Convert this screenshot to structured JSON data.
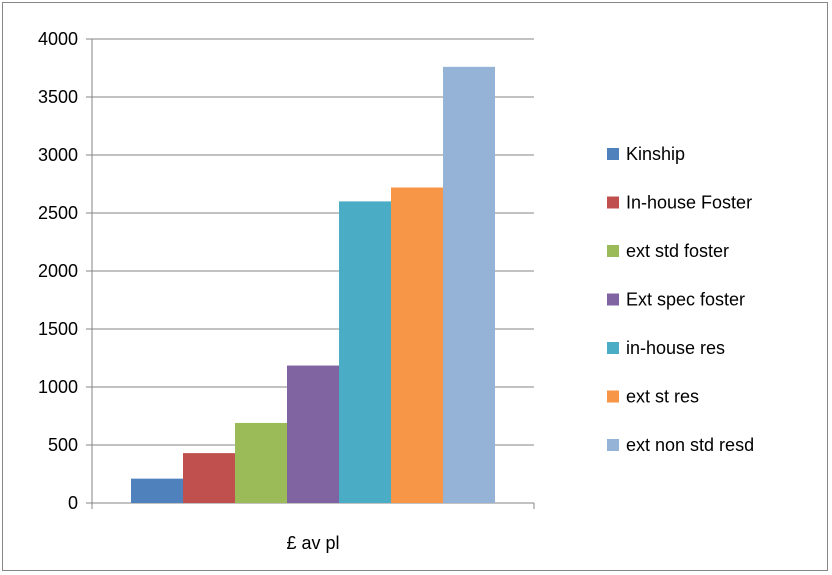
{
  "chart_data": {
    "type": "bar",
    "categories": [
      "£ av pl"
    ],
    "series": [
      {
        "name": "Kinship",
        "color": "#4F81BD",
        "values": [
          210
        ]
      },
      {
        "name": "In-house Foster",
        "color": "#C0504D",
        "values": [
          430
        ]
      },
      {
        "name": "ext std foster",
        "color": "#9BBB59",
        "values": [
          690
        ]
      },
      {
        "name": "Ext spec foster",
        "color": "#8064A2",
        "values": [
          1185
        ]
      },
      {
        "name": "in-house res",
        "color": "#4BACC6",
        "values": [
          2600
        ]
      },
      {
        "name": "ext st res",
        "color": "#F79646",
        "values": [
          2720
        ]
      },
      {
        "name": "ext non std resd",
        "color": "#95B3D7",
        "values": [
          3760
        ]
      }
    ],
    "ylim": [
      0,
      4000
    ],
    "yticks": [
      "0",
      "500",
      "1000",
      "1500",
      "2000",
      "2500",
      "3000",
      "3500",
      "4000"
    ],
    "grid": true,
    "legend_position": "right"
  }
}
